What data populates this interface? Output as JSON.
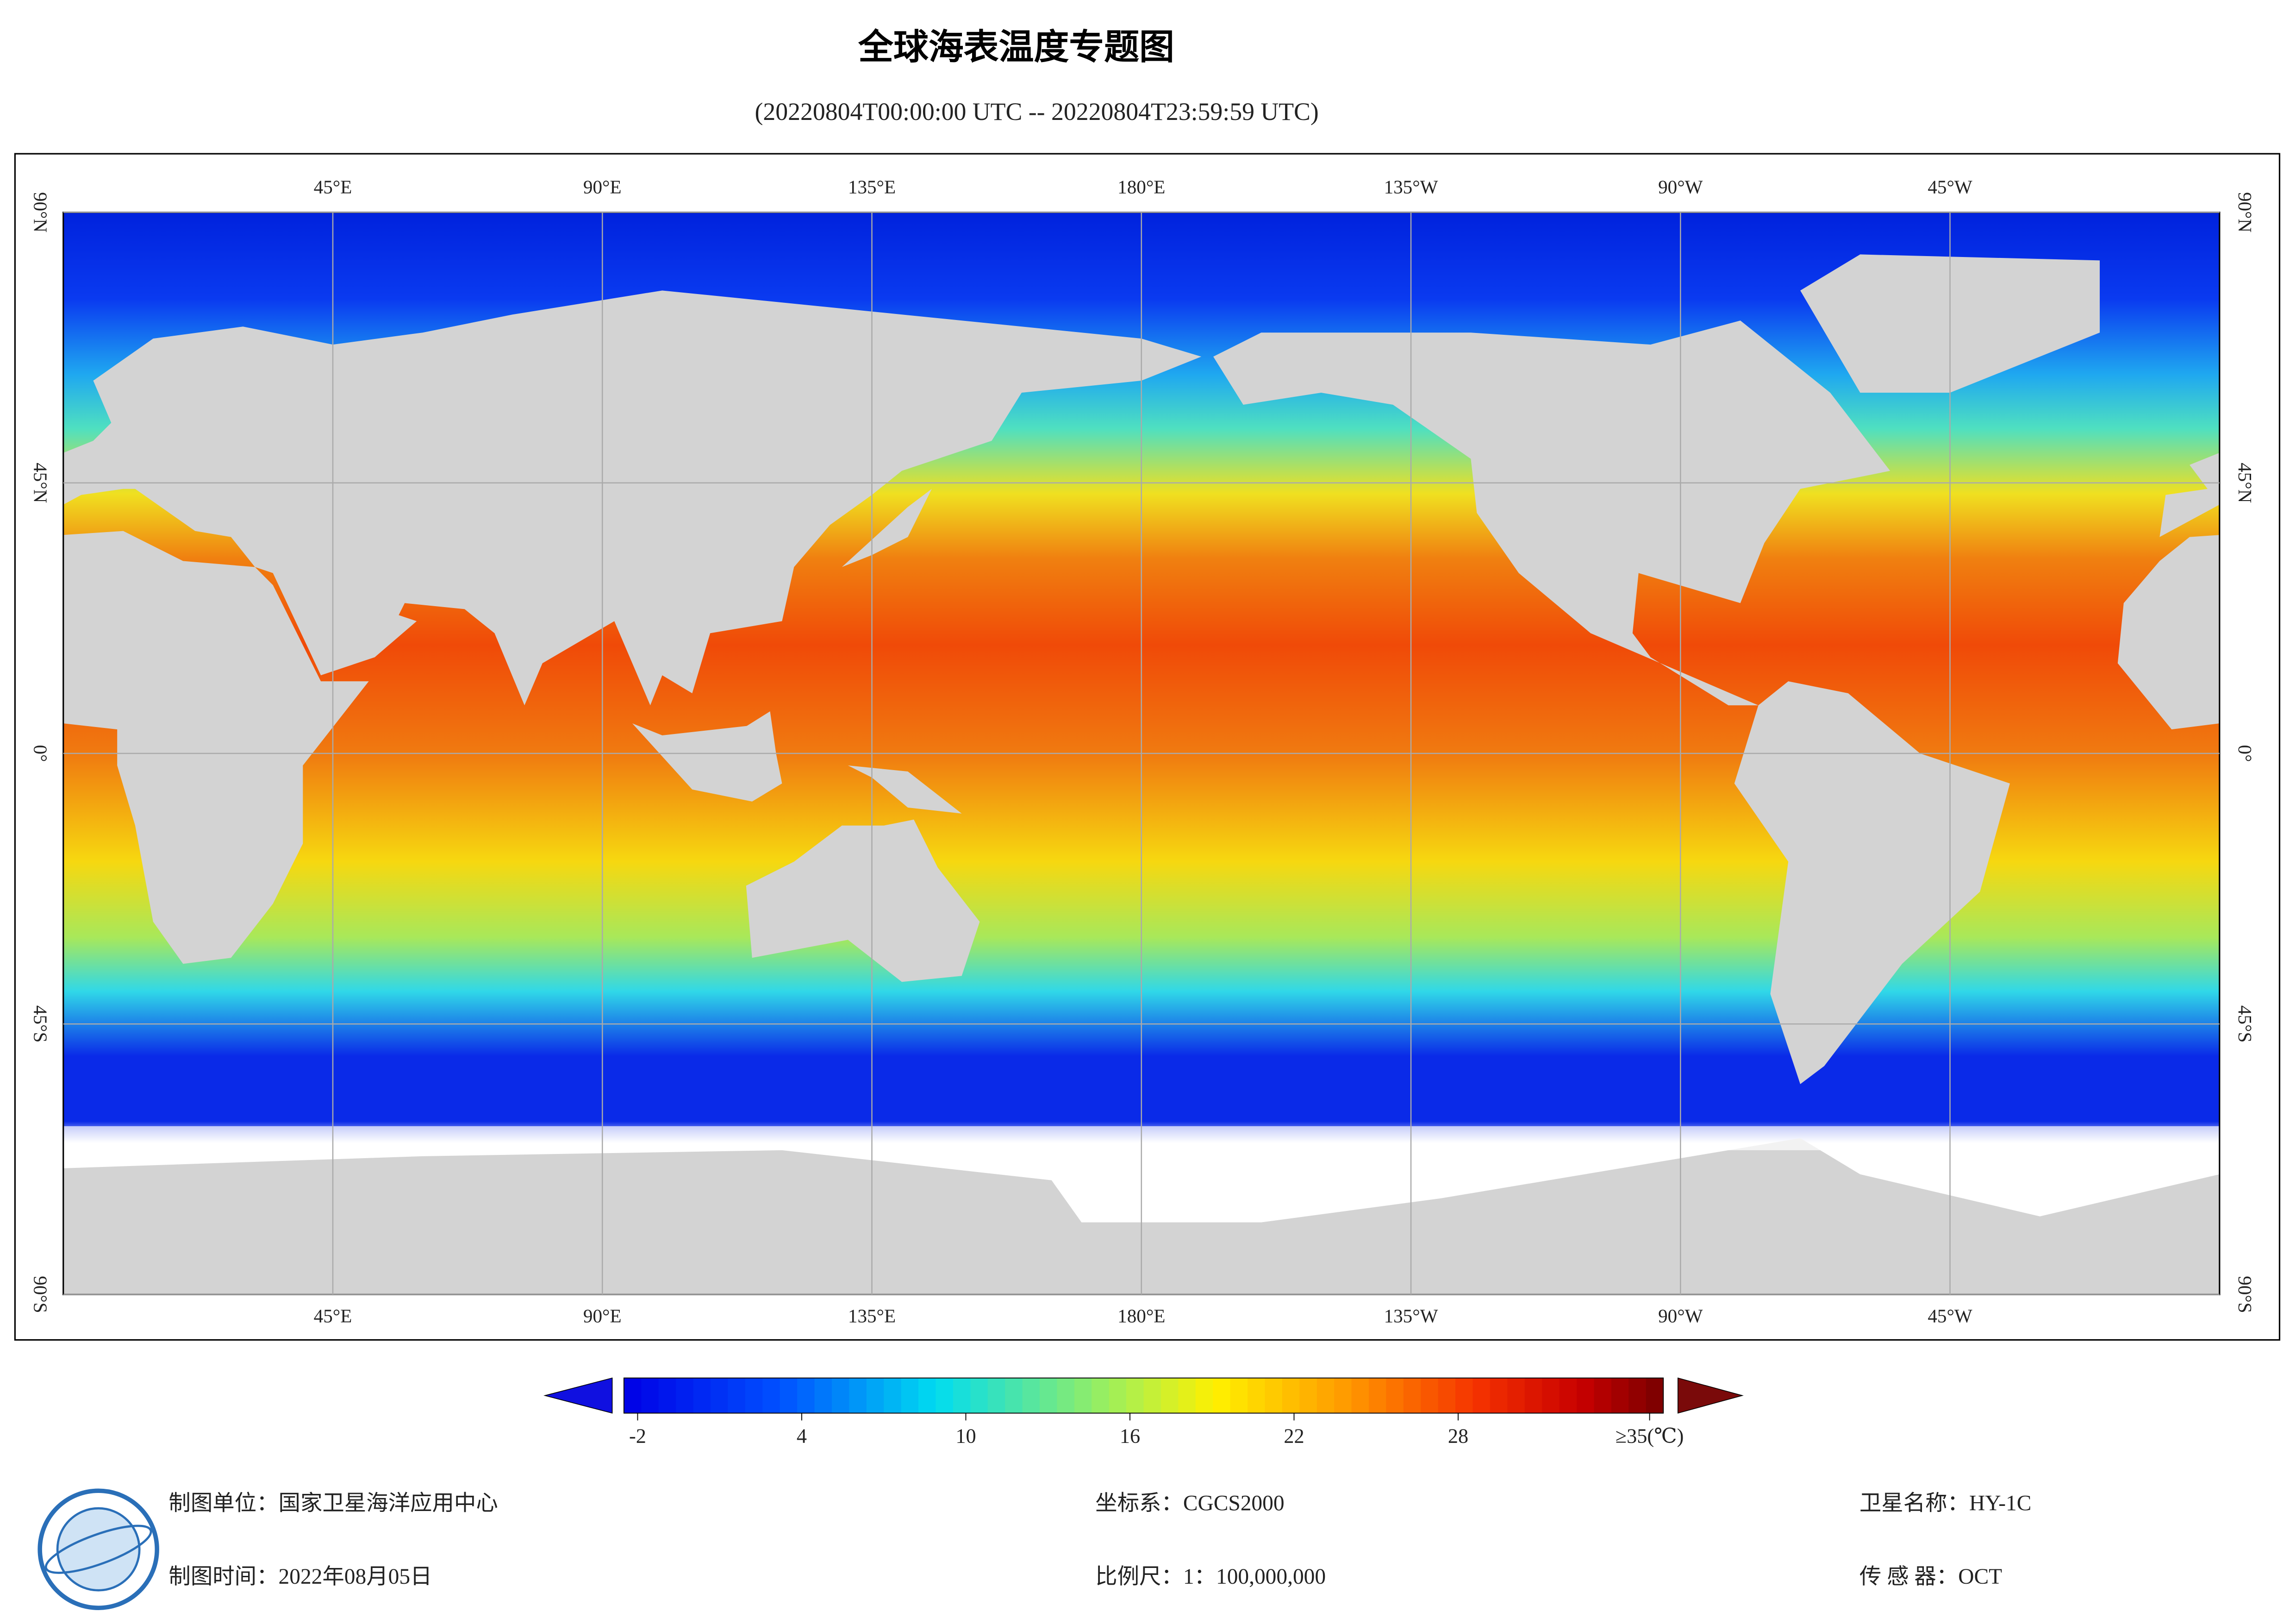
{
  "title": "全球海表温度专题图",
  "subtitle": "(20220804T00:00:00 UTC -- 20220804T23:59:59 UTC)",
  "map": {
    "lon_ticks": [
      {
        "value": 45,
        "label": "45°E"
      },
      {
        "value": 90,
        "label": "90°E"
      },
      {
        "value": 135,
        "label": "135°E"
      },
      {
        "value": 180,
        "label": "180°E"
      },
      {
        "value": 225,
        "label": "135°W"
      },
      {
        "value": 270,
        "label": "90°W"
      },
      {
        "value": 315,
        "label": "45°W"
      }
    ],
    "lat_ticks": [
      {
        "value": 90,
        "label": "90°N"
      },
      {
        "value": 45,
        "label": "45°N"
      },
      {
        "value": 0,
        "label": "0°"
      },
      {
        "value": -45,
        "label": "45°S"
      },
      {
        "value": -90,
        "label": "90°S"
      }
    ]
  },
  "colorbar": {
    "range": [
      -2.5,
      35.5
    ],
    "ticks": [
      -2,
      4,
      10,
      16,
      22,
      28,
      {
        "value": 35,
        "label": "≥35(℃)"
      }
    ]
  },
  "footer": {
    "unit": "制图单位：国家卫星海洋应用中心",
    "date": "制图时间：2022年08月05日",
    "crs": "坐标系：CGCS2000",
    "scale": "比例尺：1：100,000,000",
    "satellite": "卫星名称：HY-1C",
    "sensor": "传 感 器：OCT"
  }
}
